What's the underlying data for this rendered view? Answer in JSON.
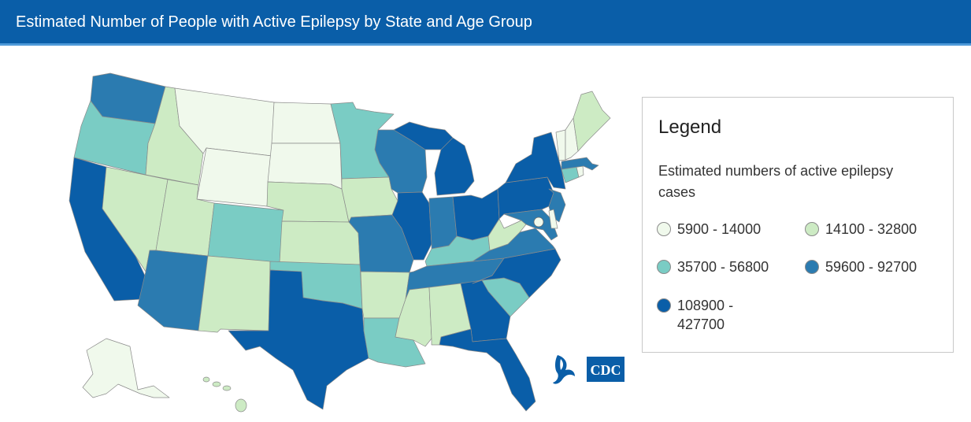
{
  "header": {
    "title": "Estimated Number of People with Active Epilepsy by State and Age Group"
  },
  "legend": {
    "title": "Legend",
    "subtitle": "Estimated numbers of active epilepsy cases",
    "bins": [
      {
        "label": "5900 - 14000",
        "color": "#f0f9ec"
      },
      {
        "label": "14100 - 32800",
        "color": "#cdebc4"
      },
      {
        "label": "35700 - 56800",
        "color": "#7accc4"
      },
      {
        "label": "59600 - 92700",
        "color": "#2b7bb0"
      },
      {
        "label": "108900 - 427700",
        "color": "#0a5ea8"
      }
    ]
  },
  "map": {
    "states": [
      {
        "id": "WA",
        "bin": 3
      },
      {
        "id": "OR",
        "bin": 2
      },
      {
        "id": "CA",
        "bin": 4
      },
      {
        "id": "NV",
        "bin": 1
      },
      {
        "id": "ID",
        "bin": 1
      },
      {
        "id": "MT",
        "bin": 0
      },
      {
        "id": "WY",
        "bin": 0
      },
      {
        "id": "UT",
        "bin": 1
      },
      {
        "id": "AZ",
        "bin": 3
      },
      {
        "id": "CO",
        "bin": 2
      },
      {
        "id": "NM",
        "bin": 1
      },
      {
        "id": "ND",
        "bin": 0
      },
      {
        "id": "SD",
        "bin": 0
      },
      {
        "id": "NE",
        "bin": 1
      },
      {
        "id": "KS",
        "bin": 1
      },
      {
        "id": "OK",
        "bin": 2
      },
      {
        "id": "TX",
        "bin": 4
      },
      {
        "id": "MN",
        "bin": 2
      },
      {
        "id": "IA",
        "bin": 1
      },
      {
        "id": "MO",
        "bin": 3
      },
      {
        "id": "AR",
        "bin": 1
      },
      {
        "id": "LA",
        "bin": 2
      },
      {
        "id": "WI",
        "bin": 3
      },
      {
        "id": "IL",
        "bin": 4
      },
      {
        "id": "MI",
        "bin": 4
      },
      {
        "id": "IN",
        "bin": 3
      },
      {
        "id": "OH",
        "bin": 4
      },
      {
        "id": "KY",
        "bin": 2
      },
      {
        "id": "TN",
        "bin": 3
      },
      {
        "id": "MS",
        "bin": 1
      },
      {
        "id": "AL",
        "bin": 1
      },
      {
        "id": "GA",
        "bin": 4
      },
      {
        "id": "FL",
        "bin": 4
      },
      {
        "id": "SC",
        "bin": 2
      },
      {
        "id": "NC",
        "bin": 4
      },
      {
        "id": "VA",
        "bin": 3
      },
      {
        "id": "WV",
        "bin": 1
      },
      {
        "id": "PA",
        "bin": 4
      },
      {
        "id": "NY",
        "bin": 4
      },
      {
        "id": "NJ",
        "bin": 3
      },
      {
        "id": "MD",
        "bin": 3
      },
      {
        "id": "DE",
        "bin": 0
      },
      {
        "id": "DC",
        "bin": 0
      },
      {
        "id": "CT",
        "bin": 2
      },
      {
        "id": "RI",
        "bin": 0
      },
      {
        "id": "MA",
        "bin": 3
      },
      {
        "id": "VT",
        "bin": 0
      },
      {
        "id": "NH",
        "bin": 0
      },
      {
        "id": "ME",
        "bin": 1
      },
      {
        "id": "AK",
        "bin": 0
      },
      {
        "id": "HI",
        "bin": 1
      }
    ]
  },
  "branding": {
    "logo_text": "CDC",
    "logo_icon": "hhs-eagle-icon"
  }
}
